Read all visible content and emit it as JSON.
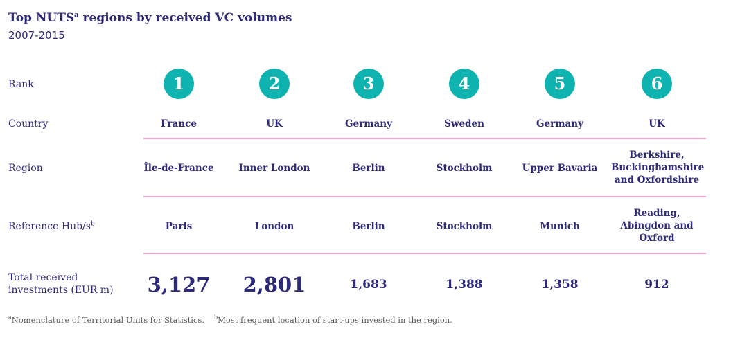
{
  "title": {
    "text_before": "Top NUTS",
    "sup": "a",
    "text_after": " regions by received VC volumes",
    "subtitle": "2007-2015"
  },
  "labels": {
    "rank": "Rank",
    "country": "Country",
    "region": "Region",
    "hub": "Reference Hub/s",
    "hub_sup": "b",
    "investments_line1": "Total received",
    "investments_line2": "investments (EUR m)"
  },
  "columns": [
    {
      "rank": "1",
      "country": "France",
      "region": "Île-de-France",
      "hub": "Paris",
      "investments": "3,127"
    },
    {
      "rank": "2",
      "country": "UK",
      "region": "Inner London",
      "hub": "London",
      "investments": "2,801"
    },
    {
      "rank": "3",
      "country": "Germany",
      "region": "Berlin",
      "hub": "Berlin",
      "investments": "1,683"
    },
    {
      "rank": "4",
      "country": "Sweden",
      "region": "Stockholm",
      "hub": "Stockholm",
      "investments": "1,388"
    },
    {
      "rank": "5",
      "country": "Germany",
      "region": "Upper Bavaria",
      "hub": "Munich",
      "investments": "1,358"
    },
    {
      "rank": "6",
      "country": "UK",
      "region": "Berkshire, Buckinghamshire and Oxfordshire",
      "hub": "Reading, Abingdon and Oxford",
      "investments": "912"
    }
  ],
  "footnotes": {
    "a_sup": "a",
    "a_text": "Nomenclature of Territorial Units for Statistics.",
    "b_sup": "b",
    "b_text": "Most frequent location of start-ups invested in the region."
  },
  "colors": {
    "text": "#2d2a7a",
    "circle": "#0fb3b0",
    "divider": "#f4a6cf"
  }
}
